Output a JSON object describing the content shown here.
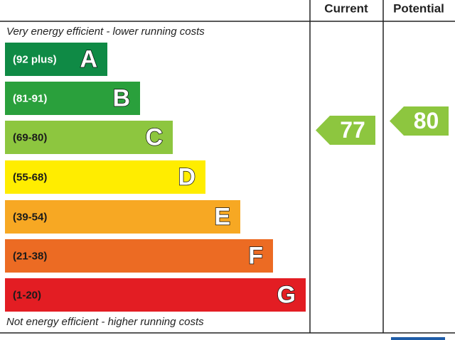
{
  "header": {
    "columns": [
      "Current",
      "Potential"
    ]
  },
  "top_note": "Very energy efficient - lower running costs",
  "bottom_note": "Not energy efficient - higher running costs",
  "bands": [
    {
      "range": "(92 plus)",
      "letter": "A",
      "color": "#0f8a45",
      "text_color": "#ffffff"
    },
    {
      "range": "(81-91)",
      "letter": "B",
      "color": "#2aa03c",
      "text_color": "#ffffff"
    },
    {
      "range": "(69-80)",
      "letter": "C",
      "color": "#8dc63f",
      "text_color": "#1a1a1a"
    },
    {
      "range": "(55-68)",
      "letter": "D",
      "color": "#ffed00",
      "text_color": "#1a1a1a"
    },
    {
      "range": "(39-54)",
      "letter": "E",
      "color": "#f7a823",
      "text_color": "#1a1a1a"
    },
    {
      "range": "(21-38)",
      "letter": "F",
      "color": "#ec6b23",
      "text_color": "#1a1a1a"
    },
    {
      "range": "(1-20)",
      "letter": "G",
      "color": "#e31d23",
      "text_color": "#1a1a1a"
    }
  ],
  "current": {
    "value": "77",
    "color": "#8dc63f"
  },
  "potential": {
    "value": "80",
    "color": "#8dc63f"
  }
}
